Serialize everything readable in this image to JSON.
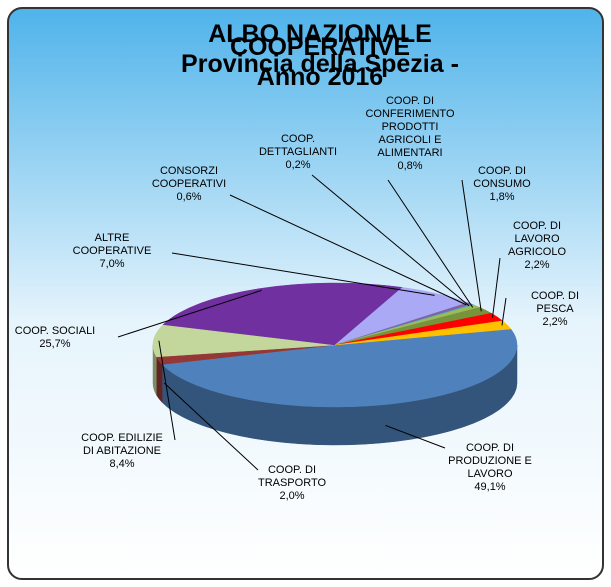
{
  "chart_data": {
    "type": "pie",
    "title": "ALBO NAZIONALE COOPERATIVE",
    "subtitle": "Provincia della Spezia - Anno 2016",
    "categories": [
      "COOP. DI\nPRODUZIONE E\nLAVORO",
      "COOP. DI\nTRASPORTO",
      "COOP. EDILIZIE\nDI ABITAZIONE",
      "COOP. SOCIALI",
      "ALTRE\nCOOPERATIVE",
      "CONSORZI\nCOOPERATIVI",
      "COOP.\nDETTAGLIANTI",
      "COOP. DI\nCONFERIMENTO\nPRODOTTI\nAGRICOLI E\nALIMENTARI",
      "COOP. DI\nCONSUMO",
      "COOP. DI\nLAVORO\nAGRICOLO",
      "COOP. DI PESCA"
    ],
    "values": [
      49.1,
      2.0,
      8.4,
      25.7,
      7.0,
      0.6,
      0.2,
      0.8,
      1.8,
      2.2,
      2.2
    ],
    "value_labels": [
      "49,1%",
      "2,0%",
      "8,4%",
      "25,7%",
      "7,0%",
      "0,6%",
      "0,2%",
      "0,8%",
      "1,8%",
      "2,2%",
      "2,2%"
    ],
    "colors": [
      "#4f81bd",
      "#953735",
      "#c3d69b",
      "#7030a0",
      "#a9a9f5",
      "#8064a2",
      "#4bacc6",
      "#9bbb59",
      "#77933c",
      "#ff0000",
      "#ffc000"
    ]
  }
}
